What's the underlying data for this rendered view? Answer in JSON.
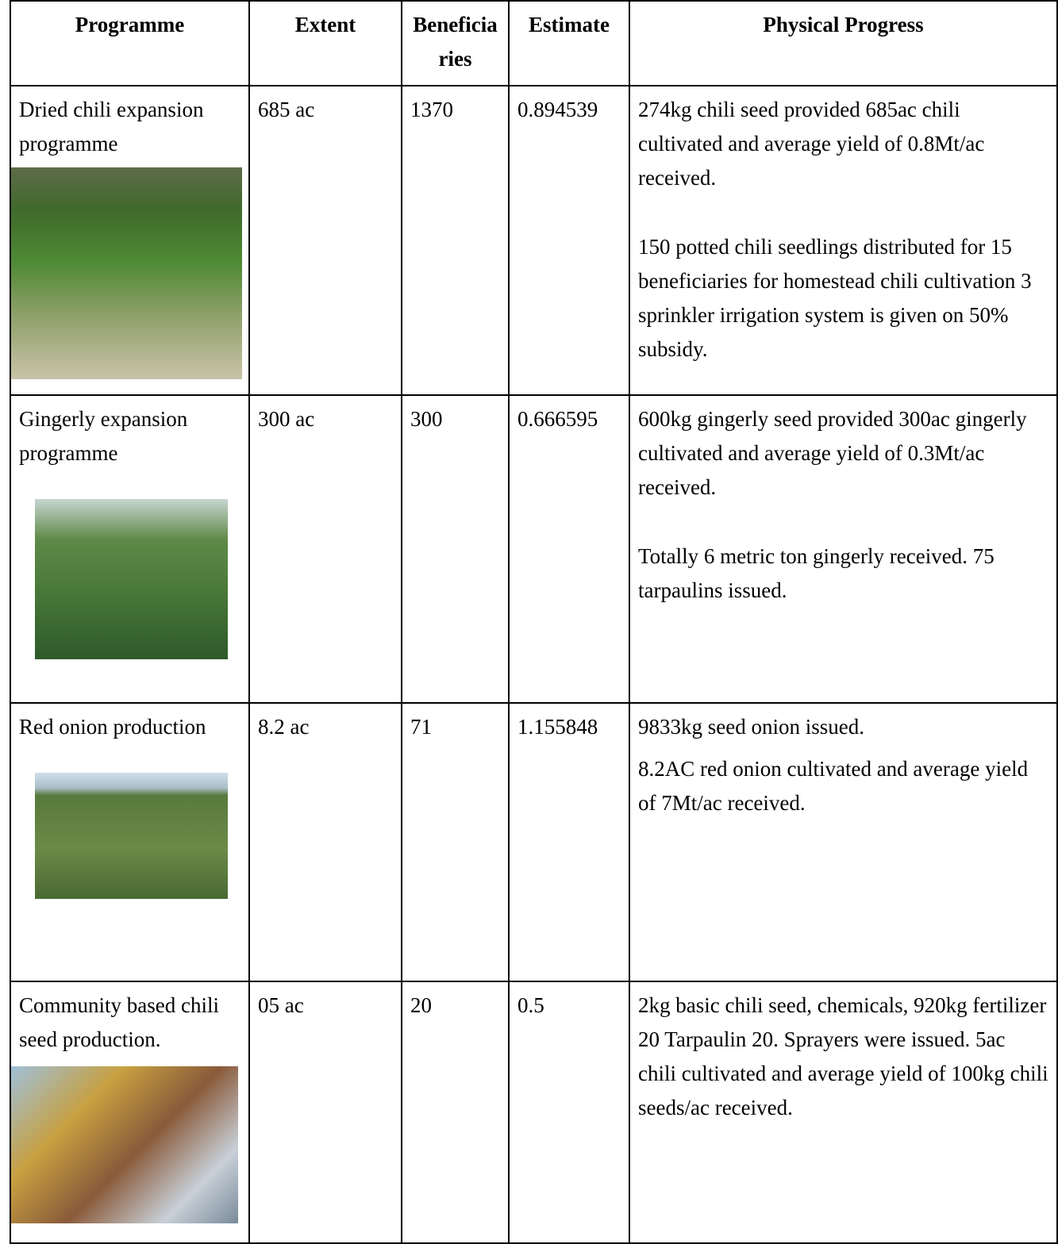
{
  "table": {
    "headers": [
      "Programme",
      "Extent",
      "Beneficiaries",
      "Estimate",
      "Physical Progress"
    ],
    "rows": [
      {
        "programme": "Dried chili expansion programme",
        "extent": "685 ac",
        "beneficiaries": 1370,
        "estimate": 0.894539,
        "progress": [
          "274kg chili seed provided 685ac chili cultivated and average yield of 0.8Mt/ac received.",
          "150 potted chili seedlings distributed for 15 beneficiaries for homestead chili cultivation 3 sprinkler irrigation system is given on 50% subsidy."
        ]
      },
      {
        "programme": "Gingerly expansion programme",
        "extent": "300 ac",
        "beneficiaries": 300,
        "estimate": 0.666595,
        "progress": [
          "600kg gingerly seed provided 300ac gingerly cultivated and average yield of 0.3Mt/ac received.",
          "Totally 6 metric ton gingerly received. 75 tarpaulins issued."
        ]
      },
      {
        "programme": "Red onion production",
        "extent": "8.2 ac",
        "beneficiaries": 71,
        "estimate": 1.155848,
        "progress": [
          "9833kg seed onion issued.",
          "8.2AC red onion cultivated and average yield of 7Mt/ac received."
        ]
      },
      {
        "programme": "Community based chili seed production.",
        "extent": "05 ac",
        "beneficiaries": 20,
        "estimate": 0.5,
        "progress": [
          "2kg basic chili seed, chemicals, 920kg fertilizer 20 Tarpaulin 20. Sprayers were issued. 5ac chili cultivated and average yield of 100kg chili seeds/ac received."
        ]
      }
    ]
  }
}
